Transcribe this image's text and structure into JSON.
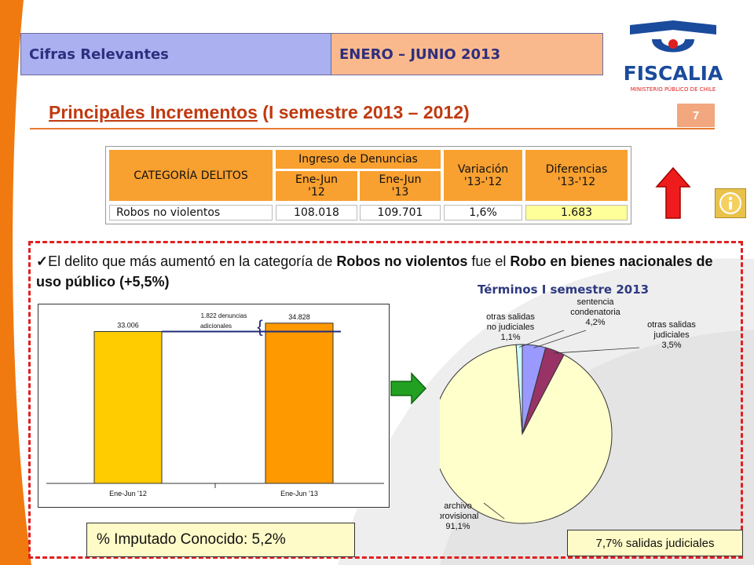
{
  "header": {
    "left_label": "Cifras Relevantes",
    "right_label": "ENERO – JUNIO 2013"
  },
  "logo": {
    "name": "FISCALIA",
    "subtitle": "MINISTERIO PÚBLICO DE CHILE"
  },
  "title": {
    "main": "Principales Incrementos",
    "rest": " (I semestre 2013 – 2012)"
  },
  "page_number": "7",
  "table": {
    "col_category": "CATEGORÍA  DELITOS",
    "col_ingreso": "Ingreso de Denuncias",
    "col_ene12_a": "Ene-Jun",
    "col_ene12_b": "'12",
    "col_ene13_a": "Ene-Jun",
    "col_ene13_b": "'13",
    "col_var_a": "Variación",
    "col_var_b": "'13-'12",
    "col_dif_a": "Diferencias",
    "col_dif_b": "'13-'12",
    "row_label": "Robos no violentos",
    "row_v12": "108.018",
    "row_v13": "109.701",
    "row_var": "1,6%",
    "row_dif": "1.683"
  },
  "bullet": {
    "pre": "El delito que más aumentó en la categoría de ",
    "bold1": "Robos no violentos",
    "mid": " fue el ",
    "bold2": "Robo en bienes nacionales de uso público",
    "post": "   (+5,5%)"
  },
  "bar_chart": {
    "annotation_line1": "1.822 denuncias",
    "annotation_line2": "adicionales",
    "brace": "{"
  },
  "pie_title": "Términos I semestre 2013",
  "imputado": "% Imputado Conocido: 5,2%",
  "salidas": "7,7% salidas judiciales",
  "colors": {
    "accent_orange": "#f8a030",
    "red": "#e02020",
    "bar12": "#ffcc00",
    "bar13": "#ff9900"
  },
  "chart_data": [
    {
      "type": "bar",
      "categories": [
        "Ene-Jun '12",
        "Ene-Jun '13"
      ],
      "values": [
        33006,
        34828
      ],
      "value_labels": [
        "33.006",
        "34.828"
      ],
      "ylim": [
        0,
        36500
      ],
      "grid": false,
      "colors": [
        "#ffcc00",
        "#ff9900"
      ]
    },
    {
      "type": "pie",
      "slices": [
        {
          "label_line1": "sentencia",
          "label_line2": "condenatoria",
          "value_label": "4,2%",
          "value": 4.2,
          "color": "#9999ff"
        },
        {
          "label_line1": "otras salidas",
          "label_line2": "judiciales",
          "value_label": "3,5%",
          "value": 3.5,
          "color": "#993366"
        },
        {
          "label_line1": "archivo",
          "label_line2": "provisional",
          "value_label": "91,1%",
          "value": 91.1,
          "color": "#ffffcc"
        },
        {
          "label_line1": "otras salidas",
          "label_line2": "no judiciales",
          "value_label": "1,1%",
          "value": 1.1,
          "color": "#ccffff"
        }
      ]
    }
  ]
}
